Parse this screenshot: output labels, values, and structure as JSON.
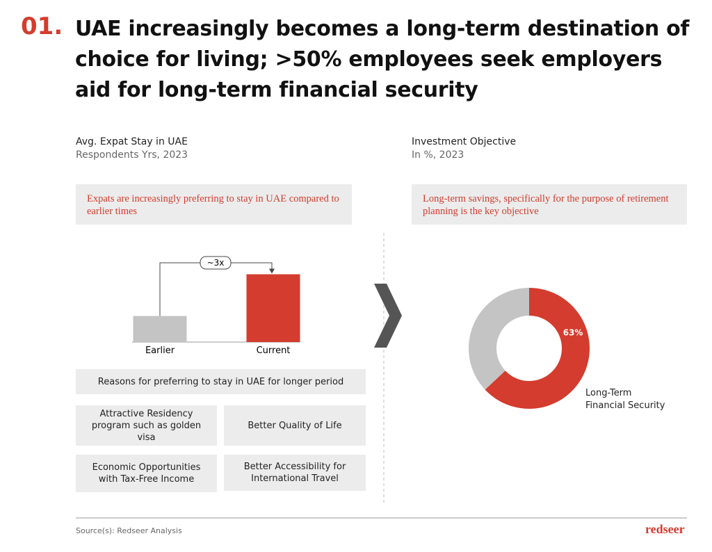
{
  "header": {
    "number": "01.",
    "title": "UAE increasingly becomes a long-term destination of choice for living; >50% employees seek employers aid for long-term financial security"
  },
  "chart_data": [
    {
      "type": "bar",
      "title": "Avg. Expat Stay in UAE",
      "subtitle": "Respondents Yrs, 2023",
      "callout": "Expats are increasingly preferring to stay in UAE compared to earlier times",
      "categories": [
        "Earlier",
        "Current"
      ],
      "values": [
        1,
        2.6
      ],
      "colors": [
        "#c4c4c4",
        "#d33c2e"
      ],
      "ylim": [
        0,
        2.8
      ],
      "annotation": "~3x"
    },
    {
      "type": "pie",
      "title": "Investment Objective",
      "subtitle": "In %, 2023",
      "callout": "Long-term savings, specifically for the purpose of retirement planning is the key objective",
      "categories": [
        "Long-Term\nFinancial Security",
        null
      ],
      "values": [
        63,
        37
      ],
      "value_labels": [
        "63%",
        null
      ],
      "colors": [
        "#d33c2e",
        "#c4c4c4"
      ],
      "donut": true
    }
  ],
  "reasons": {
    "title": "Reasons for preferring to stay in UAE for longer period",
    "items": [
      "Attractive Residency program such as golden visa",
      "Better Quality of Life",
      "Economic Opportunities with Tax-Free Income",
      "Better Accessibility for International Travel"
    ]
  },
  "footer": {
    "source": "Source(s): Redseer Analysis",
    "brand": "redseer"
  }
}
